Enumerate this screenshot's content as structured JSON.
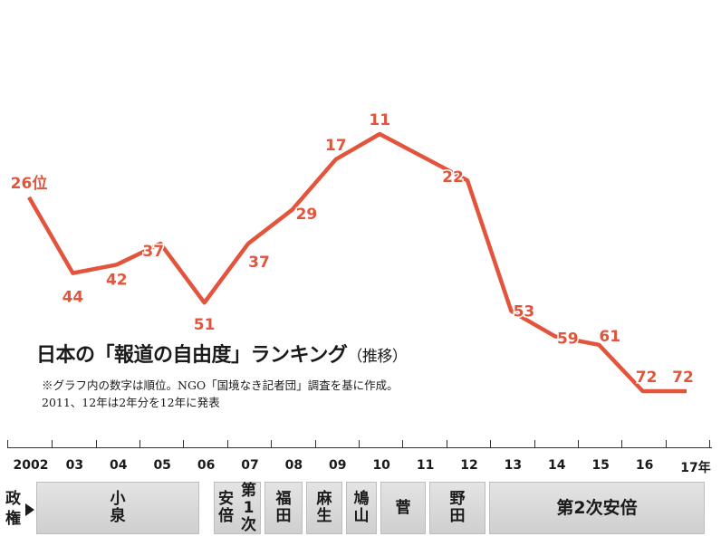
{
  "title": "日本の「報道の自由度」ランキング",
  "title_suffix": "（推移）",
  "notes": [
    "※グラフ内の数字は順位。NGO「国境なき記者団」調査を基に作成。",
    "2011、12年は2年分を12年に発表"
  ],
  "colors": {
    "line": "#e2553c",
    "label": "#e2553c",
    "bar": "#d6d6d6"
  },
  "chart_data": {
    "type": "line",
    "x": [
      "2002",
      "03",
      "04",
      "05",
      "06",
      "07",
      "08",
      "09",
      "10",
      "11",
      "12",
      "13",
      "14",
      "15",
      "16",
      "17年"
    ],
    "series": [
      {
        "values": [
          26,
          44,
          42,
          37,
          51,
          37,
          29,
          17,
          11,
          null,
          22,
          53,
          59,
          61,
          72,
          72
        ],
        "labels": [
          "26位",
          "44",
          "42",
          "37",
          "51",
          "37",
          "29",
          "17",
          "11",
          "",
          "22",
          "53",
          "59",
          "61",
          "72",
          "72"
        ]
      }
    ],
    "y_inverted": true,
    "ylim": [
      0,
      80
    ]
  },
  "government": {
    "label": "政権",
    "periods": [
      {
        "name": "小泉",
        "vertical": true
      },
      {
        "name": "安倍",
        "vertical": true
      },
      {
        "name": "第1次",
        "vertical": true
      },
      {
        "name": "福田",
        "vertical": true
      },
      {
        "name": "麻生",
        "vertical": true
      },
      {
        "name": "鳩山",
        "vertical": true
      },
      {
        "name": "菅",
        "vertical": false
      },
      {
        "name": "野田",
        "vertical": true
      },
      {
        "name": "第2次安倍",
        "vertical": false
      }
    ]
  },
  "portraits": [
    "koizumi-portrait-icon",
    "abe-first-portrait-icon",
    "fukuda-portrait-icon",
    "aso-portrait-icon",
    "hatoyama-portrait-icon",
    "kan-portrait-icon",
    "noda-portrait-icon",
    "abe-second-portrait-icon"
  ]
}
